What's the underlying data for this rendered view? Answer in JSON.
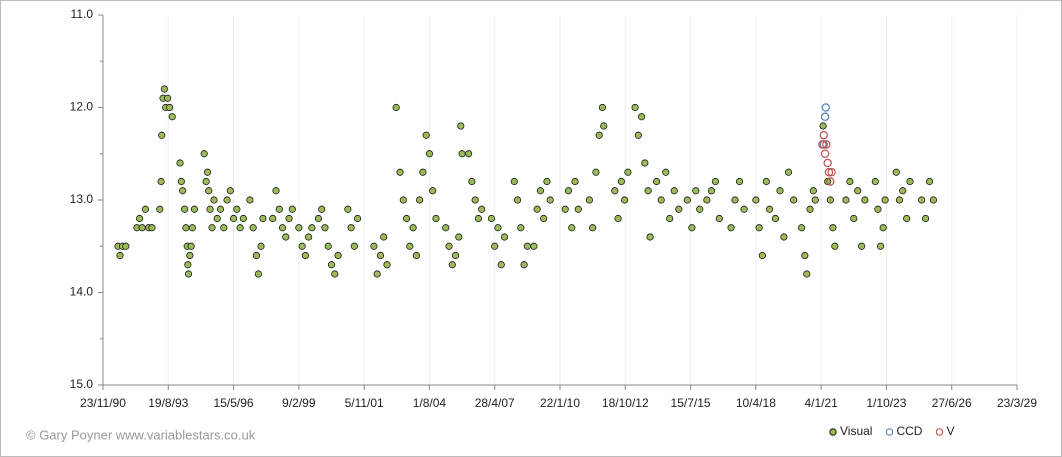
{
  "chart_data": {
    "type": "scatter",
    "credit": "© Gary Poyner www.variablestars.co.uk",
    "xlim": [
      33200,
      47200
    ],
    "xticks": [
      {
        "value": 33200,
        "label": "23/11/90"
      },
      {
        "value": 34200,
        "label": "19/8/93"
      },
      {
        "value": 35200,
        "label": "15/5/96"
      },
      {
        "value": 36200,
        "label": "9/2/99"
      },
      {
        "value": 37200,
        "label": "5/11/01"
      },
      {
        "value": 38200,
        "label": "1/8/04"
      },
      {
        "value": 39200,
        "label": "28/4/07"
      },
      {
        "value": 40200,
        "label": "22/1/10"
      },
      {
        "value": 41200,
        "label": "18/10/12"
      },
      {
        "value": 42200,
        "label": "15/7/15"
      },
      {
        "value": 43200,
        "label": "10/4/18"
      },
      {
        "value": 44200,
        "label": "4/1/21"
      },
      {
        "value": 45200,
        "label": "1/10/23"
      },
      {
        "value": 46200,
        "label": "27/6/26"
      },
      {
        "value": 47200,
        "label": "23/3/29"
      }
    ],
    "ylim": [
      11,
      15
    ],
    "y_inverted": true,
    "yticks": [
      {
        "value": 11,
        "label": "11.0"
      },
      {
        "value": 12,
        "label": "12.0"
      },
      {
        "value": 13,
        "label": "13.0"
      },
      {
        "value": 14,
        "label": "14.0"
      },
      {
        "value": 15,
        "label": "15.0"
      }
    ],
    "minor_yticks": [
      11.5,
      12.5,
      13.5,
      14.5
    ],
    "grid": "x",
    "legend": "bottom-right",
    "series": [
      {
        "name": "Visual",
        "color": "#9bbb59",
        "filled": true,
        "x": [
          33430,
          33460,
          33500,
          33550,
          33720,
          33760,
          33800,
          33850,
          33900,
          33950,
          34070,
          34090,
          34100,
          34120,
          34140,
          34160,
          34190,
          34220,
          34260,
          34380,
          34400,
          34420,
          34450,
          34470,
          34490,
          34500,
          34510,
          34530,
          34550,
          34570,
          34600,
          34750,
          34780,
          34800,
          34820,
          34840,
          34870,
          34900,
          34950,
          35000,
          35050,
          35100,
          35150,
          35200,
          35250,
          35300,
          35350,
          35450,
          35500,
          35550,
          35580,
          35620,
          35650,
          35800,
          35850,
          35900,
          35950,
          36000,
          36050,
          36100,
          36200,
          36250,
          36300,
          36350,
          36400,
          36500,
          36550,
          36600,
          36650,
          36700,
          36750,
          36800,
          36950,
          37000,
          37050,
          37100,
          37350,
          37400,
          37450,
          37500,
          37550,
          37690,
          37750,
          37800,
          37850,
          37900,
          37950,
          38000,
          38050,
          38100,
          38150,
          38200,
          38250,
          38300,
          38450,
          38500,
          38550,
          38600,
          38650,
          38680,
          38700,
          38800,
          38850,
          38900,
          38950,
          39000,
          39150,
          39200,
          39250,
          39300,
          39350,
          39500,
          39550,
          39600,
          39650,
          39700,
          39800,
          39850,
          39900,
          39950,
          40000,
          40050,
          40280,
          40330,
          40380,
          40430,
          40480,
          40650,
          40700,
          40750,
          40800,
          40850,
          40870,
          41040,
          41090,
          41140,
          41190,
          41240,
          41350,
          41400,
          41450,
          41500,
          41550,
          41580,
          41680,
          41750,
          41820,
          41880,
          41950,
          42020,
          42150,
          42220,
          42280,
          42340,
          42450,
          42520,
          42580,
          42640,
          42820,
          42880,
          42950,
          43020,
          43200,
          43250,
          43300,
          43360,
          43410,
          43500,
          43570,
          43630,
          43700,
          43780,
          43900,
          43950,
          43980,
          44030,
          44080,
          44110,
          44230,
          44300,
          44340,
          44380,
          44410,
          44580,
          44640,
          44700,
          44760,
          44820,
          44870,
          45030,
          45070,
          45110,
          45150,
          45180,
          45350,
          45400,
          45450,
          45510,
          45560,
          45740,
          45800,
          45860,
          45920
        ],
        "values": [
          13.5,
          13.6,
          13.5,
          13.5,
          13.3,
          13.2,
          13.3,
          13.1,
          13.3,
          13.3,
          13.1,
          12.8,
          12.3,
          11.9,
          11.8,
          12.0,
          11.9,
          12.0,
          12.1,
          12.6,
          12.8,
          12.9,
          13.1,
          13.3,
          13.5,
          13.7,
          13.8,
          13.6,
          13.5,
          13.3,
          13.1,
          12.5,
          12.8,
          12.7,
          12.9,
          13.1,
          13.3,
          13.0,
          13.2,
          13.1,
          13.3,
          13.0,
          12.9,
          13.2,
          13.1,
          13.3,
          13.2,
          13.0,
          13.3,
          13.6,
          13.8,
          13.5,
          13.2,
          13.2,
          12.9,
          13.1,
          13.3,
          13.4,
          13.2,
          13.1,
          13.3,
          13.5,
          13.6,
          13.4,
          13.3,
          13.2,
          13.1,
          13.3,
          13.5,
          13.7,
          13.8,
          13.6,
          13.1,
          13.3,
          13.5,
          13.2,
          13.5,
          13.8,
          13.6,
          13.4,
          13.7,
          12.0,
          12.7,
          13.0,
          13.2,
          13.5,
          13.3,
          13.6,
          13.0,
          12.7,
          12.3,
          12.5,
          12.9,
          13.2,
          13.3,
          13.5,
          13.7,
          13.6,
          13.4,
          12.2,
          12.5,
          12.5,
          12.8,
          13.0,
          13.2,
          13.1,
          13.2,
          13.5,
          13.3,
          13.7,
          13.4,
          12.8,
          13.0,
          13.3,
          13.7,
          13.5,
          13.5,
          13.1,
          12.9,
          13.2,
          12.8,
          13.0,
          13.1,
          12.9,
          13.3,
          12.8,
          13.1,
          13.0,
          13.3,
          12.7,
          12.3,
          12.0,
          12.2,
          12.9,
          13.2,
          12.8,
          13.0,
          12.7,
          12.0,
          12.3,
          12.1,
          12.6,
          12.9,
          13.4,
          12.8,
          13.0,
          12.7,
          13.2,
          12.9,
          13.1,
          13.0,
          13.3,
          12.9,
          13.1,
          13.0,
          12.9,
          12.8,
          13.2,
          13.3,
          13.0,
          12.8,
          13.1,
          13.0,
          13.3,
          13.6,
          12.8,
          13.1,
          13.2,
          12.9,
          13.4,
          12.7,
          13.0,
          13.3,
          13.6,
          13.8,
          13.1,
          12.9,
          13.0,
          12.2,
          12.8,
          13.0,
          13.3,
          13.5,
          13.0,
          12.8,
          13.2,
          12.9,
          13.5,
          13.0,
          12.8,
          13.1,
          13.5,
          13.3,
          13.0,
          12.7,
          13.0,
          12.9,
          13.2,
          12.8,
          13.0,
          13.2,
          12.8,
          13.0
        ]
      },
      {
        "name": "CCD",
        "color": "#4f81bd",
        "filled": false,
        "x": [
          44270,
          44260,
          44240
        ],
        "values": [
          12.0,
          12.1,
          12.4
        ]
      },
      {
        "name": "V",
        "color": "#c0504d",
        "filled": false,
        "x": [
          44220,
          44240,
          44260,
          44280,
          44300,
          44320,
          44340,
          44360
        ],
        "values": [
          12.4,
          12.3,
          12.5,
          12.4,
          12.6,
          12.7,
          12.8,
          12.7
        ]
      }
    ]
  }
}
